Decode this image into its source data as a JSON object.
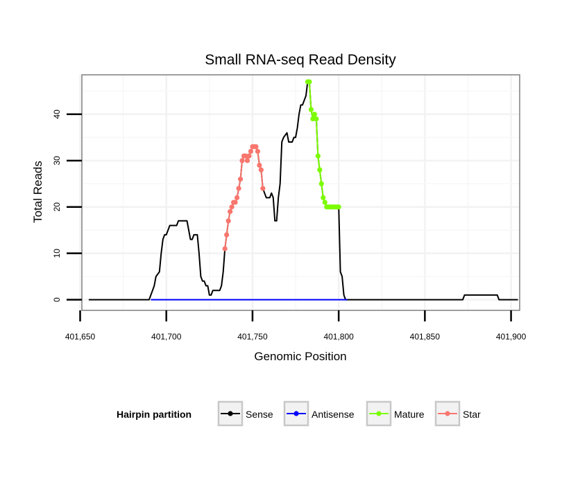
{
  "chart_data": {
    "type": "line",
    "title": "Small RNA-seq Read Density",
    "xlabel": "Genomic Position",
    "ylabel": "Total Reads",
    "xlim": [
      401651,
      401905
    ],
    "ylim": [
      -2.3,
      48.5
    ],
    "x_ticks": [
      401650,
      401700,
      401750,
      401800,
      401850,
      401900
    ],
    "x_tick_labels": [
      "401,650",
      "401,700",
      "401,750",
      "401,800",
      "401,850",
      "401,900"
    ],
    "y_ticks": [
      0,
      10,
      20,
      30,
      40
    ],
    "y_tick_labels": [
      "0",
      "10",
      "20",
      "30",
      "40"
    ],
    "grid": true,
    "legend": {
      "title": "Hairpin partition",
      "placement": "bottom",
      "entries": [
        {
          "label": "Sense",
          "color": "#000000"
        },
        {
          "label": "Antisense",
          "color": "#0000ff"
        },
        {
          "label": "Mature",
          "color": "#7cfc00"
        },
        {
          "label": "Star",
          "color": "#f8766d"
        }
      ]
    },
    "series": [
      {
        "name": "Sense",
        "color": "#000000",
        "style": "line",
        "points": [
          [
            401655,
            0
          ],
          [
            401690,
            0
          ],
          [
            401691,
            1
          ],
          [
            401692,
            2
          ],
          [
            401693,
            3
          ],
          [
            401694,
            5
          ],
          [
            401696,
            6
          ],
          [
            401697,
            10
          ],
          [
            401698,
            13
          ],
          [
            401699,
            14
          ],
          [
            401700,
            14
          ],
          [
            401701,
            15
          ],
          [
            401702,
            16
          ],
          [
            401706,
            16
          ],
          [
            401707,
            17
          ],
          [
            401712,
            17
          ],
          [
            401713,
            15
          ],
          [
            401714,
            13
          ],
          [
            401715,
            13
          ],
          [
            401716,
            14
          ],
          [
            401718,
            14
          ],
          [
            401719,
            10
          ],
          [
            401720,
            5
          ],
          [
            401721,
            4
          ],
          [
            401722,
            4
          ],
          [
            401723,
            3
          ],
          [
            401724,
            3
          ],
          [
            401725,
            1
          ],
          [
            401726,
            1
          ],
          [
            401727,
            2
          ],
          [
            401730,
            2
          ],
          [
            401731,
            2
          ],
          [
            401732,
            3
          ],
          [
            401733,
            6
          ],
          [
            401734,
            11
          ],
          [
            401735,
            14
          ],
          [
            401736,
            17
          ],
          [
            401737,
            19
          ],
          [
            401738,
            20
          ],
          [
            401739,
            21
          ],
          [
            401740,
            21
          ],
          [
            401741,
            22
          ],
          [
            401742,
            24
          ],
          [
            401743,
            26
          ],
          [
            401744,
            30
          ],
          [
            401745,
            31
          ],
          [
            401746,
            31
          ],
          [
            401747,
            30
          ],
          [
            401748,
            31
          ],
          [
            401749,
            32
          ],
          [
            401750,
            33
          ],
          [
            401752,
            33
          ],
          [
            401753,
            32
          ],
          [
            401754,
            29
          ],
          [
            401755,
            28
          ],
          [
            401756,
            24
          ],
          [
            401757,
            23
          ],
          [
            401758,
            22
          ],
          [
            401760,
            22
          ],
          [
            401761,
            23
          ],
          [
            401762,
            22
          ],
          [
            401763,
            17
          ],
          [
            401764,
            17
          ],
          [
            401765,
            22
          ],
          [
            401766,
            25
          ],
          [
            401767,
            34
          ],
          [
            401768,
            35
          ],
          [
            401770,
            36
          ],
          [
            401771,
            34
          ],
          [
            401773,
            34
          ],
          [
            401774,
            35
          ],
          [
            401775,
            35
          ],
          [
            401776,
            37
          ],
          [
            401777,
            40
          ],
          [
            401778,
            42
          ],
          [
            401779,
            42
          ],
          [
            401780,
            43
          ],
          [
            401781,
            44
          ],
          [
            401782,
            47
          ],
          [
            401783,
            47
          ],
          [
            401784,
            41
          ],
          [
            401785,
            39
          ],
          [
            401786,
            40
          ],
          [
            401787,
            39
          ],
          [
            401788,
            31
          ],
          [
            401789,
            28
          ],
          [
            401790,
            25
          ],
          [
            401791,
            22
          ],
          [
            401792,
            21
          ],
          [
            401793,
            20
          ],
          [
            401800,
            20
          ],
          [
            401801,
            6
          ],
          [
            401802,
            5
          ],
          [
            401803,
            1
          ],
          [
            401804,
            0
          ],
          [
            401872,
            0
          ],
          [
            401873,
            1
          ],
          [
            401892,
            1
          ],
          [
            401893,
            0
          ],
          [
            401904,
            0
          ]
        ]
      },
      {
        "name": "Antisense",
        "color": "#0000ff",
        "style": "line",
        "points": [
          [
            401691,
            0
          ],
          [
            401805,
            0
          ]
        ]
      },
      {
        "name": "Mature",
        "color": "#7cfc00",
        "style": "line+points",
        "points": [
          [
            401782,
            47
          ],
          [
            401783,
            47
          ],
          [
            401784,
            41
          ],
          [
            401785,
            39
          ],
          [
            401786,
            40
          ],
          [
            401787,
            39
          ],
          [
            401788,
            31
          ],
          [
            401789,
            28
          ],
          [
            401790,
            25
          ],
          [
            401791,
            22
          ],
          [
            401792,
            21
          ],
          [
            401793,
            20
          ],
          [
            401794,
            20
          ],
          [
            401795,
            20
          ],
          [
            401796,
            20
          ],
          [
            401797,
            20
          ],
          [
            401798,
            20
          ],
          [
            401799,
            20
          ],
          [
            401800,
            20
          ]
        ]
      },
      {
        "name": "Star",
        "color": "#f8766d",
        "style": "line+points",
        "points": [
          [
            401734,
            11
          ],
          [
            401735,
            14
          ],
          [
            401736,
            17
          ],
          [
            401737,
            19
          ],
          [
            401738,
            20
          ],
          [
            401739,
            21
          ],
          [
            401740,
            21
          ],
          [
            401741,
            22
          ],
          [
            401742,
            24
          ],
          [
            401743,
            26
          ],
          [
            401744,
            30
          ],
          [
            401745,
            31
          ],
          [
            401746,
            31
          ],
          [
            401747,
            30
          ],
          [
            401748,
            31
          ],
          [
            401749,
            32
          ],
          [
            401750,
            33
          ],
          [
            401751,
            33
          ],
          [
            401752,
            33
          ],
          [
            401753,
            32
          ],
          [
            401754,
            29
          ],
          [
            401755,
            28
          ],
          [
            401756,
            24
          ]
        ]
      }
    ]
  }
}
